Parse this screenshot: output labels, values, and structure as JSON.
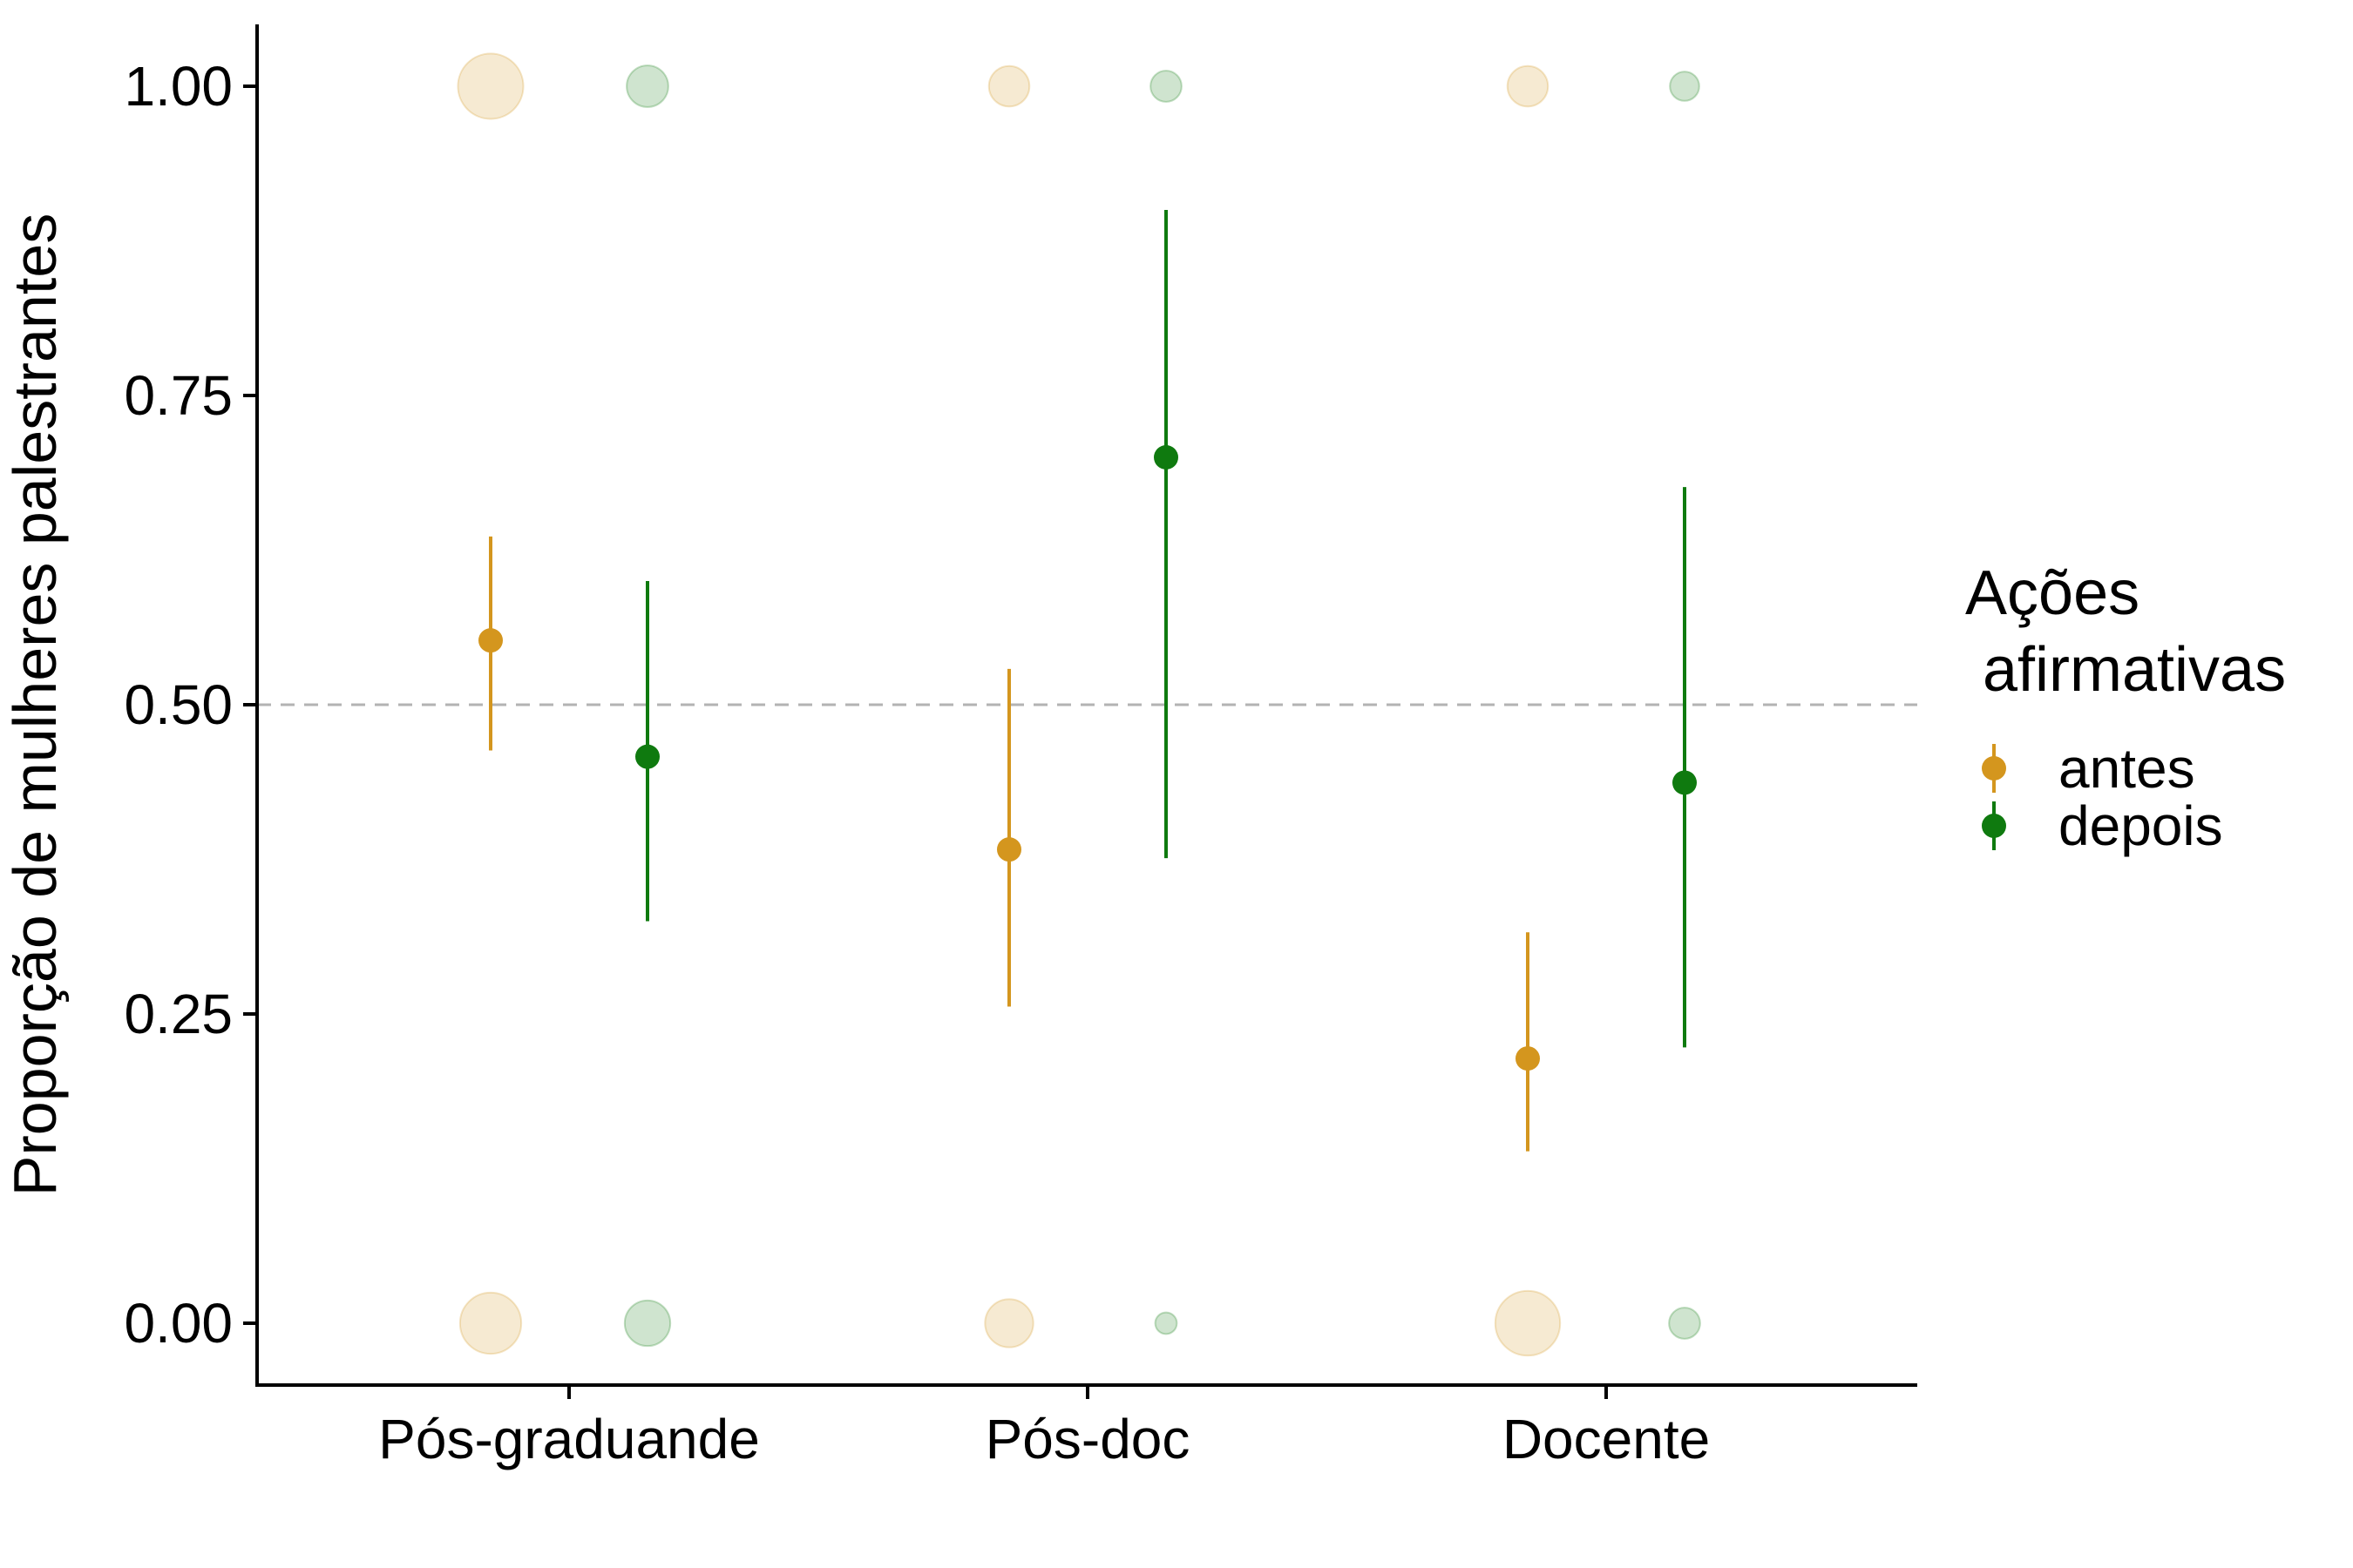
{
  "chart_data": {
    "type": "scatter",
    "title": "",
    "xlabel": "",
    "ylabel": "Proporção de mulheres palestrantes",
    "categories": [
      "Pós-graduande",
      "Pós-doc",
      "Docente"
    ],
    "ylim": [
      -0.05,
      1.05
    ],
    "yticks": [
      0.0,
      0.25,
      0.5,
      0.75,
      1.0
    ],
    "ytick_labels": [
      "0.00",
      "0.25",
      "0.50",
      "0.75",
      "1.00"
    ],
    "reference_line": {
      "y": 0.5,
      "style": "dashed",
      "color": "#b3b3b3"
    },
    "grid": false,
    "legend": {
      "title_lines": [
        "Ações",
        " afirmativas"
      ],
      "position": "right"
    },
    "series": [
      {
        "name": "antes",
        "color": "#d4961e",
        "estimates": [
          0.552,
          0.383,
          0.214
        ],
        "ci_low": [
          0.463,
          0.256,
          0.139
        ],
        "ci_high": [
          0.636,
          0.529,
          0.316
        ],
        "raw_counts": {
          "at_1": [
            45,
            12,
            12
          ],
          "at_0": [
            38,
            20,
            44
          ]
        }
      },
      {
        "name": "depois",
        "color": "#0f7a0f",
        "estimates": [
          0.458,
          0.7,
          0.437
        ],
        "ci_low": [
          0.325,
          0.376,
          0.223
        ],
        "ci_high": [
          0.6,
          0.9,
          0.676
        ],
        "raw_counts": {
          "at_1": [
            13,
            5,
            4
          ],
          "at_0": [
            17,
            1,
            5
          ]
        }
      }
    ]
  }
}
